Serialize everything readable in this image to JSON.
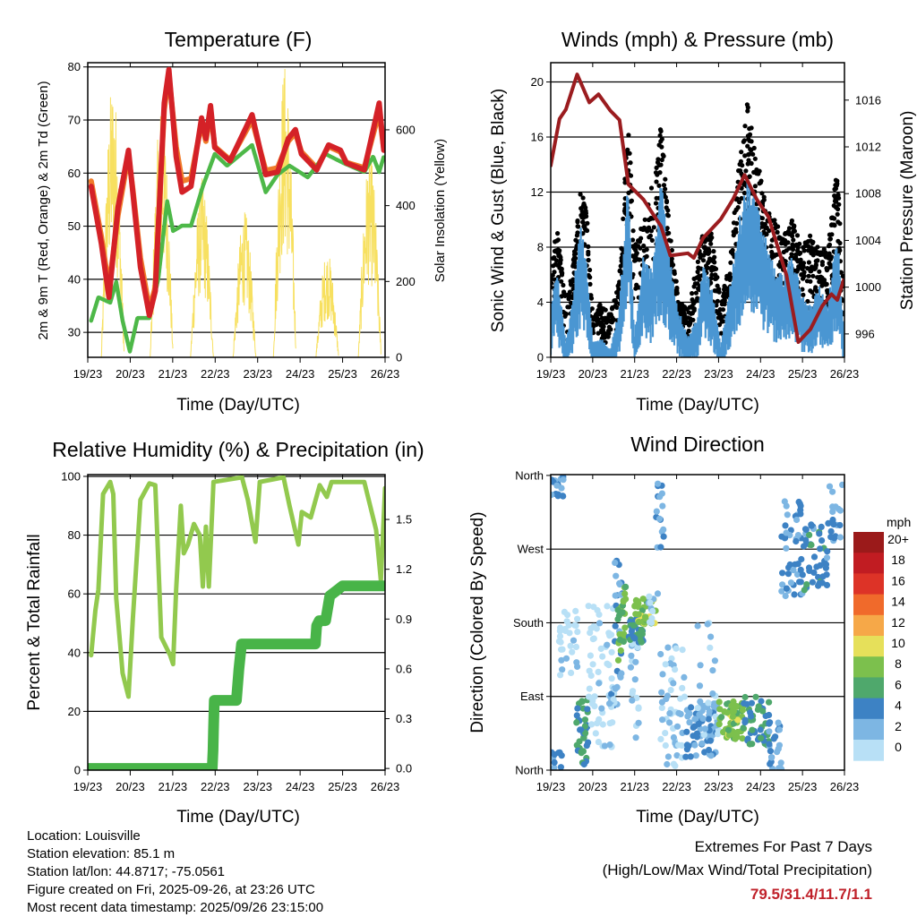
{
  "colors": {
    "temp_9m": "#f07c2a",
    "temp_2m": "#d42127",
    "dewpoint": "#4db848",
    "solar": "#f7e060",
    "gust": "#000000",
    "wind": "#4a96d2",
    "pressure": "#9b1c1f",
    "rh": "#92c94e",
    "precip": "#48b448",
    "extremes": "#c0212a"
  },
  "info": {
    "location": "Location: Louisville",
    "elevation": "Station elevation: 85.1 m",
    "latlon": "Station lat/lon: 44.8717; -75.0561",
    "created": "Figure created on Fri, 2025-09-26, at 23:26 UTC",
    "recent": "Most recent data timestamp: 2025/09/26 23:15:00"
  },
  "extremes": {
    "title": "Extremes For Past 7 Days",
    "subtitle": "(High/Low/Max Wind/Total Precipitation)",
    "values": "79.5/31.4/11.7/1.1"
  },
  "chart_data": [
    {
      "type": "line",
      "title": "Temperature (F)",
      "xlabel": "Time (Day/UTC)",
      "ylabel": "2m & 9m T (Red, Orange) & 2m Td (Green)",
      "ylabel_right": "Solar Insolation (Yellow)",
      "xticks": [
        "19/23",
        "20/23",
        "21/23",
        "22/23",
        "23/23",
        "24/23",
        "25/23",
        "26/23"
      ],
      "xlim": [
        0,
        7
      ],
      "ylim": [
        25.3,
        80.8
      ],
      "yticks": [
        30,
        40,
        50,
        60,
        70,
        80
      ],
      "ylim_right": [
        0,
        777
      ],
      "yticks_right": [
        0,
        200,
        400,
        600
      ],
      "grid": true,
      "series": [
        {
          "name": "9m T",
          "color_key": "temp_9m",
          "x": [
            0.08,
            0.32,
            0.5,
            0.71,
            0.96,
            1.06,
            1.24,
            1.45,
            1.59,
            1.8,
            1.91,
            2.08,
            2.22,
            2.43,
            2.68,
            2.78,
            2.89,
            2.99,
            3.35,
            3.87,
            4.19,
            4.47,
            4.72,
            4.89,
            5.03,
            5.39,
            5.67,
            5.95,
            6.09,
            6.51,
            6.86,
            6.97
          ],
          "y": [
            58.5,
            48,
            38.5,
            52,
            63.5,
            57,
            44,
            34.5,
            38.5,
            72,
            78.5,
            65,
            58.5,
            59,
            69.5,
            66,
            71.5,
            65,
            62.5,
            70,
            60.5,
            61,
            66,
            67.5,
            64,
            61,
            65,
            64,
            62,
            61,
            71.5,
            64.5
          ]
        },
        {
          "name": "2m T",
          "color_key": "temp_2m",
          "x": [
            0.08,
            0.32,
            0.5,
            0.71,
            0.96,
            1.06,
            1.24,
            1.45,
            1.59,
            1.8,
            1.91,
            2.08,
            2.22,
            2.43,
            2.68,
            2.78,
            2.89,
            2.99,
            3.35,
            3.87,
            4.19,
            4.47,
            4.72,
            4.89,
            5.03,
            5.39,
            5.67,
            5.95,
            6.09,
            6.51,
            6.86,
            6.97
          ],
          "y": [
            57.5,
            46.7,
            36.6,
            53.5,
            64.3,
            56.4,
            42.3,
            33.2,
            37.8,
            73.2,
            79.5,
            63.1,
            56.4,
            57.5,
            70.4,
            66.5,
            72.7,
            64.8,
            62.3,
            71,
            59.7,
            60.2,
            66.5,
            68.2,
            63.6,
            60.6,
            65.3,
            64.3,
            61.9,
            60.6,
            73.2,
            64.3
          ]
        },
        {
          "name": "2m Td",
          "color_key": "dewpoint",
          "x": [
            0.08,
            0.25,
            0.53,
            0.67,
            0.82,
            0.99,
            1.17,
            1.45,
            1.66,
            1.87,
            2.01,
            2.22,
            2.43,
            2.71,
            2.99,
            3.28,
            3.87,
            4.19,
            4.47,
            4.75,
            5.18,
            5.6,
            6.02,
            6.51,
            6.72,
            6.86,
            6.97
          ],
          "y": [
            32.2,
            36.6,
            35.6,
            39.5,
            32.2,
            26.4,
            32.7,
            32.7,
            40,
            54.7,
            49.1,
            50.1,
            50.1,
            57.5,
            63.6,
            61.4,
            65.3,
            56.4,
            59.7,
            61.4,
            59.2,
            63.6,
            61.9,
            60.2,
            63.1,
            60.2,
            63.1
          ]
        },
        {
          "name": "Solar Insolation",
          "color_key": "solar",
          "axis": "right",
          "daily_peak_day": [
            0.6,
            1.75,
            2.7,
            3.7,
            4.65,
            5.65,
            6.65
          ],
          "daily_peak_value": [
            734,
            678,
            475,
            387,
            780,
            281,
            545
          ]
        }
      ]
    },
    {
      "type": "scatter",
      "title": "Winds (mph) & Pressure (mb)",
      "xlabel": "Time (Day/UTC)",
      "ylabel": "Sonic Wind & Gust (Blue, Black)",
      "ylabel_right": "Station Pressure (Maroon)",
      "xticks": [
        "19/23",
        "20/23",
        "21/23",
        "22/23",
        "23/23",
        "24/23",
        "25/23",
        "26/23"
      ],
      "xlim": [
        0,
        7
      ],
      "ylim": [
        0,
        21.4
      ],
      "yticks": [
        0,
        4,
        8,
        12,
        16,
        20
      ],
      "ylim_right": [
        994,
        1019.2
      ],
      "yticks_right": [
        996,
        1000,
        1004,
        1008,
        1012,
        1016
      ],
      "grid": true,
      "series": [
        {
          "name": "Sonic Wind",
          "color_key": "wind",
          "x": [
            0,
            0.14,
            0.36,
            0.5,
            0.71,
            0.85,
            1.0,
            1.21,
            1.42,
            1.64,
            1.85,
            1.99,
            2.21,
            2.42,
            2.63,
            2.85,
            3.06,
            3.27,
            3.49,
            3.63,
            3.84,
            4.05,
            4.27,
            4.48,
            4.69,
            4.91,
            5.12,
            5.33,
            5.55,
            5.76,
            5.98,
            6.19,
            6.4,
            6.61,
            6.83,
            6.97
          ],
          "y": [
            3.3,
            6.1,
            0.9,
            3.3,
            8.5,
            6,
            1,
            1.2,
            0.5,
            3.3,
            11.5,
            1.3,
            6.6,
            5.5,
            11.3,
            6.1,
            2.9,
            1.3,
            2.5,
            6.1,
            4.4,
            0.7,
            4.4,
            8.7,
            11.5,
            9.8,
            7.8,
            5.7,
            5.3,
            6.6,
            4,
            3.3,
            4.6,
            3.5,
            8,
            2.2
          ]
        },
        {
          "name": "Gust (max envelope)",
          "color_key": "gust",
          "x": [
            0,
            0.14,
            0.36,
            0.5,
            0.71,
            0.85,
            1.0,
            1.21,
            1.42,
            1.64,
            1.85,
            1.99,
            2.21,
            2.42,
            2.63,
            2.85,
            3.06,
            3.27,
            3.49,
            3.63,
            3.84,
            4.05,
            4.27,
            4.48,
            4.69,
            4.91,
            5.12,
            5.33,
            5.55,
            5.76,
            5.98,
            6.19,
            6.4,
            6.61,
            6.83,
            6.97
          ],
          "y": [
            6.5,
            10,
            4,
            6,
            12.5,
            11,
            3,
            4,
            3,
            6,
            17.5,
            8,
            10,
            13,
            17,
            9,
            4,
            3.5,
            7,
            9,
            9,
            4,
            7,
            14,
            18.5,
            15,
            11,
            10,
            9,
            10,
            8,
            9,
            8,
            8,
            14,
            6
          ]
        },
        {
          "name": "Station Pressure",
          "color_key": "pressure",
          "axis": "right",
          "x": [
            0,
            0.21,
            0.36,
            0.63,
            0.92,
            1.14,
            1.42,
            1.64,
            1.85,
            2.21,
            2.63,
            2.85,
            3.27,
            3.41,
            3.63,
            4.05,
            4.34,
            4.62,
            4.91,
            5.19,
            5.62,
            5.9,
            6.19,
            6.47,
            6.69,
            6.83,
            6.98
          ],
          "y": [
            1010.4,
            1014.4,
            1015.2,
            1018.2,
            1015.8,
            1016.5,
            1015.1,
            1014.3,
            1008.8,
            1007.5,
            1005.2,
            1002.7,
            1002.9,
            1002.5,
            1004.2,
            1005.8,
            1007.5,
            1009.6,
            1007.5,
            1006,
            1001,
            995.3,
            996.4,
            998.4,
            999.4,
            998.9,
            1000.6
          ]
        }
      ]
    },
    {
      "type": "line",
      "title": "Relative Humidity (%) & Precipitation (in)",
      "xlabel": "Time (Day/UTC)",
      "ylabel": "Percent & Total Rainfall",
      "xticks": [
        "19/23",
        "20/23",
        "21/23",
        "22/23",
        "23/23",
        "24/23",
        "25/23",
        "26/23"
      ],
      "xlim": [
        0,
        7
      ],
      "ylim": [
        0,
        100.6
      ],
      "yticks": [
        0,
        20,
        40,
        60,
        80,
        100
      ],
      "ylim_right": [
        -0.01,
        1.77
      ],
      "yticks_right": [
        "0.0",
        "0.3",
        "0.6",
        "0.9",
        "1.2",
        "1.5"
      ],
      "grid": true,
      "series": [
        {
          "name": "Relative Humidity",
          "color_key": "rh",
          "x": [
            0.08,
            0.18,
            0.25,
            0.36,
            0.53,
            0.6,
            0.67,
            0.82,
            0.96,
            1.06,
            1.24,
            1.45,
            1.59,
            1.66,
            1.73,
            1.94,
            2.01,
            2.08,
            2.19,
            2.26,
            2.36,
            2.5,
            2.64,
            2.71,
            2.78,
            2.85,
            2.96,
            3.63,
            3.77,
            3.95,
            4.05,
            4.61,
            4.75,
            4.96,
            5.04,
            5.25,
            5.46,
            5.63,
            5.74,
            6.51,
            6.79,
            6.9,
            7.0
          ],
          "y": [
            39.1,
            54.4,
            61.5,
            94,
            98.1,
            94,
            58.5,
            33,
            25,
            51.3,
            92,
            97.6,
            97,
            71.6,
            45.2,
            39.1,
            36.1,
            61.5,
            90,
            73.8,
            76.8,
            83.8,
            79.9,
            62.5,
            82.9,
            62.5,
            98.1,
            99.7,
            92,
            77.7,
            98.1,
            99.7,
            90,
            76.8,
            87.9,
            86,
            97,
            93,
            98.1,
            98.1,
            81.8,
            64.6,
            96
          ]
        },
        {
          "name": "Total Precipitation",
          "color_key": "precip",
          "axis": "right",
          "x": [
            0,
            2.93,
            2.95,
            2.96,
            2.98,
            3.07,
            3.5,
            3.56,
            3.62,
            5.36,
            5.39,
            5.45,
            5.6,
            5.7,
            5.85,
            6.0,
            7.0
          ],
          "y": [
            0,
            0,
            0.11,
            0.23,
            0.41,
            0.41,
            0.41,
            0.6,
            0.75,
            0.75,
            0.86,
            0.89,
            0.89,
            1.04,
            1.07,
            1.1,
            1.1
          ]
        }
      ]
    },
    {
      "type": "scatter",
      "title": "Wind Direction",
      "xlabel": "Time (Day/UTC)",
      "ylabel": "Direction (Colored By Speed)",
      "xticks": [
        "19/23",
        "20/23",
        "21/23",
        "22/23",
        "23/23",
        "24/23",
        "25/23",
        "26/23"
      ],
      "xlim": [
        0,
        7
      ],
      "ylim": [
        0,
        361
      ],
      "yticks": [
        {
          "value": 0,
          "label": "North"
        },
        {
          "value": 90,
          "label": "East"
        },
        {
          "value": 180,
          "label": "South"
        },
        {
          "value": 270,
          "label": "West"
        },
        {
          "value": 360,
          "label": "North"
        }
      ],
      "grid": true,
      "legend": {
        "title": "mph",
        "placement": "right",
        "labels": [
          "20+",
          "18",
          "16",
          "14",
          "12",
          "10",
          "8",
          "6",
          "4",
          "2",
          "0"
        ],
        "colors": [
          "#9b1a1a",
          "#c11c22",
          "#dd3327",
          "#f06a2b",
          "#f6a848",
          "#e6e05a",
          "#7cc04d",
          "#4fa86c",
          "#3d82c4",
          "#7db6e3",
          "#b8e0f6"
        ]
      },
      "clusters": [
        {
          "days": [
            0.0,
            0.3
          ],
          "dir": [
            332,
            360
          ],
          "speed": 4,
          "count": 18
        },
        {
          "days": [
            0.0,
            0.3
          ],
          "dir": [
            0,
            22
          ],
          "speed": 4,
          "count": 10
        },
        {
          "days": [
            0.2,
            0.65
          ],
          "dir": [
            112,
            200
          ],
          "speed": 1,
          "count": 30
        },
        {
          "days": [
            0.6,
            0.9
          ],
          "dir": [
            5,
            86
          ],
          "speed": 6,
          "count": 40
        },
        {
          "days": [
            0.9,
            1.5
          ],
          "dir": [
            20,
            210
          ],
          "speed": 1,
          "count": 55
        },
        {
          "days": [
            1.4,
            1.6
          ],
          "dir": [
            75,
            112
          ],
          "speed": 3,
          "count": 15
        },
        {
          "days": [
            1.5,
            1.7
          ],
          "dir": [
            112,
            258
          ],
          "speed": 4,
          "count": 20
        },
        {
          "days": [
            1.6,
            1.8
          ],
          "dir": [
            134,
            228
          ],
          "speed": 8,
          "count": 25
        },
        {
          "days": [
            1.9,
            2.1
          ],
          "dir": [
            38,
            162
          ],
          "speed": 2,
          "count": 18
        },
        {
          "days": [
            1.85,
            2.2
          ],
          "dir": [
            156,
            184
          ],
          "speed": 6,
          "count": 40
        },
        {
          "days": [
            2.0,
            2.5
          ],
          "dir": [
            178,
            210
          ],
          "speed": 9,
          "count": 30
        },
        {
          "days": [
            2.3,
            2.6
          ],
          "dir": [
            180,
            225
          ],
          "speed": 2,
          "count": 12
        },
        {
          "days": [
            2.5,
            2.7
          ],
          "dir": [
            269,
            360
          ],
          "speed": 4,
          "count": 16
        },
        {
          "days": [
            2.6,
            3.2
          ],
          "dir": [
            2,
            156
          ],
          "speed": 2,
          "count": 50
        },
        {
          "days": [
            3.2,
            4.0
          ],
          "dir": [
            16,
            82
          ],
          "speed": 4,
          "count": 70
        },
        {
          "days": [
            3.5,
            4.0
          ],
          "dir": [
            40,
            180
          ],
          "speed": 2,
          "count": 25
        },
        {
          "days": [
            4.0,
            4.6
          ],
          "dir": [
            38,
            86
          ],
          "speed": 9,
          "count": 60
        },
        {
          "days": [
            4.6,
            5.2
          ],
          "dir": [
            30,
            90
          ],
          "speed": 6,
          "count": 45
        },
        {
          "days": [
            5.2,
            5.5
          ],
          "dir": [
            0,
            60
          ],
          "speed": 4,
          "count": 25
        },
        {
          "days": [
            5.5,
            6.0
          ],
          "dir": [
            210,
            330
          ],
          "speed": 4,
          "count": 45
        },
        {
          "days": [
            6.0,
            6.6
          ],
          "dir": [
            220,
            300
          ],
          "speed": 5,
          "count": 45
        },
        {
          "days": [
            6.6,
            6.95
          ],
          "dir": [
            280,
            350
          ],
          "speed": 4,
          "count": 20
        }
      ]
    }
  ]
}
